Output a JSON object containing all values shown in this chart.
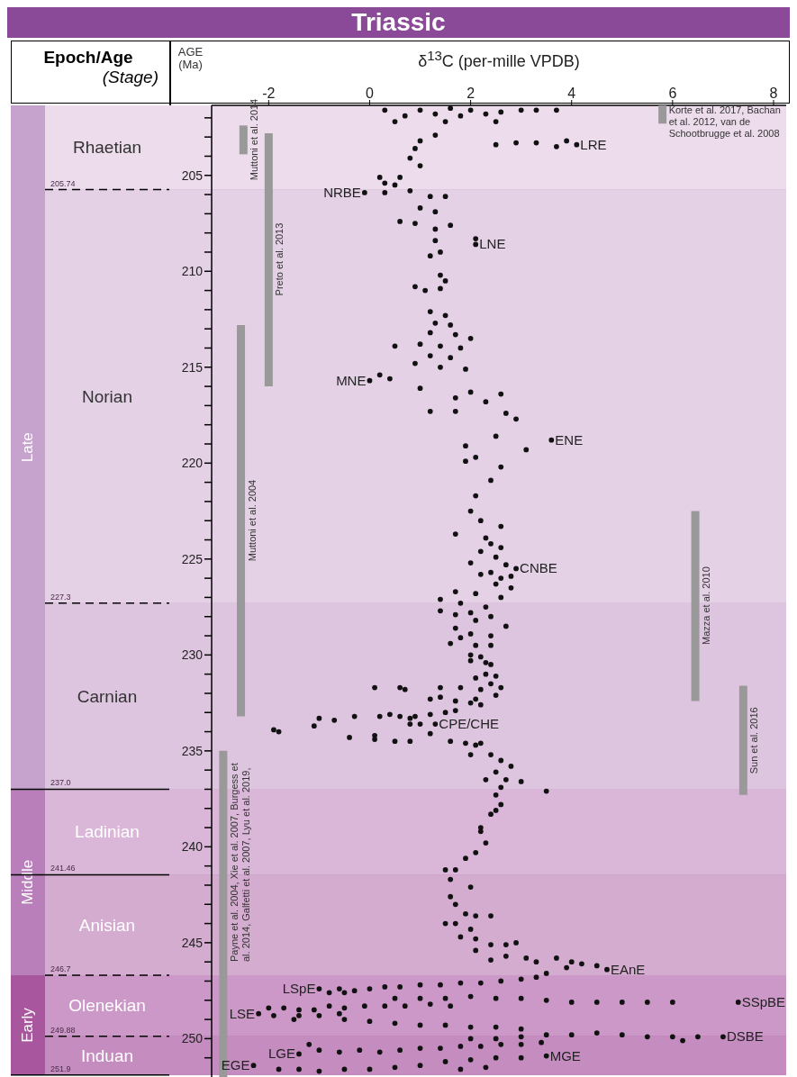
{
  "chart_data": {
    "type": "scatter",
    "title": "Triassic",
    "xlabel": "δ$^{13}$C (per-mille VPDB)",
    "ylabel": "AGE (Ma)",
    "annotations": [
      "Epoch/Age",
      "(Stage)",
      {
        "text": "LRE",
        "x": 4.1,
        "y": 203.4
      },
      {
        "text": "NRBE",
        "x": -0.1,
        "y": 205.9
      },
      {
        "text": "LNE",
        "x": 2.1,
        "y": 208.6
      },
      {
        "text": "MNE",
        "x": 0.0,
        "y": 215.7
      },
      {
        "text": "ENE",
        "x": 3.6,
        "y": 218.8
      },
      {
        "text": "CNBE",
        "x": 2.9,
        "y": 225.5
      },
      {
        "text": "CPE/CHE",
        "x": 1.3,
        "y": 233.6
      },
      {
        "text": "EAnE",
        "x": 4.7,
        "y": 246.4
      },
      {
        "text": "LSpE",
        "x": -1.0,
        "y": 247.4
      },
      {
        "text": "LSE",
        "x": -2.2,
        "y": 248.7
      },
      {
        "text": "SSpBE",
        "x": 7.3,
        "y": 248.1
      },
      {
        "text": "DSBE",
        "x": 7.0,
        "y": 249.9
      },
      {
        "text": "LGE",
        "x": -1.4,
        "y": 250.8
      },
      {
        "text": "EGE",
        "x": -2.3,
        "y": 251.4
      },
      {
        "text": "MGE",
        "x": 3.5,
        "y": 250.9
      }
    ],
    "xlim": [
      -3.13,
      8.25
    ],
    "xticks": [
      -2,
      0,
      2,
      4,
      6,
      8
    ],
    "ylim": [
      252,
      201.35
    ],
    "yticks": [
      {
        "value": 202,
        "label": null
      },
      {
        "value": 203,
        "label": null
      },
      {
        "value": 204,
        "label": null
      },
      205,
      {
        "value": 206,
        "label": null
      },
      {
        "value": 207,
        "label": null
      },
      {
        "value": 208,
        "label": null
      },
      {
        "value": 209,
        "label": null
      },
      210,
      {
        "value": 211,
        "label": null
      },
      {
        "value": 212,
        "label": null
      },
      {
        "value": 213,
        "label": null
      },
      {
        "value": 214,
        "label": null
      },
      215,
      {
        "value": 216,
        "label": null
      },
      {
        "value": 217,
        "label": null
      },
      {
        "value": 218,
        "label": null
      },
      {
        "value": 219,
        "label": null
      },
      220,
      {
        "value": 221,
        "label": null
      },
      {
        "value": 222,
        "label": null
      },
      {
        "value": 223,
        "label": null
      },
      {
        "value": 224,
        "label": null
      },
      225,
      {
        "value": 226,
        "label": null
      },
      {
        "value": 227,
        "label": null
      },
      {
        "value": 228,
        "label": null
      },
      {
        "value": 229,
        "label": null
      },
      230,
      {
        "value": 231,
        "label": null
      },
      {
        "value": 232,
        "label": null
      },
      {
        "value": 233,
        "label": null
      },
      {
        "value": 234,
        "label": null
      },
      235,
      {
        "value": 236,
        "label": null
      },
      {
        "value": 237,
        "label": null
      },
      {
        "value": 238,
        "label": null
      },
      {
        "value": 239,
        "label": null
      },
      240,
      {
        "value": 241,
        "label": null
      },
      {
        "value": 242,
        "label": null
      },
      {
        "value": 243,
        "label": null
      },
      {
        "value": 244,
        "label": null
      },
      245,
      {
        "value": 246,
        "label": null
      },
      {
        "value": 247,
        "label": null
      },
      {
        "value": 248,
        "label": null
      },
      {
        "value": 249,
        "label": null
      },
      250,
      {
        "value": 251,
        "label": null
      }
    ],
    "bands": [
      {
        "axis": "y",
        "from": 201.35,
        "to": 205.74,
        "label": "Rhaetian",
        "color": "#eddcec"
      },
      {
        "axis": "y",
        "from": 205.74,
        "to": 227.3,
        "label": "Norian",
        "color": "#e5d1e5"
      },
      {
        "axis": "y",
        "from": 227.3,
        "to": 237.0,
        "label": "Carnian",
        "color": "#dec5df"
      },
      {
        "axis": "y",
        "from": 237.0,
        "to": 241.46,
        "label": "Ladinian",
        "color": "#dab7d8"
      },
      {
        "axis": "y",
        "from": 241.46,
        "to": 246.7,
        "label": "Anisian",
        "color": "#d4acd0"
      },
      {
        "axis": "y",
        "from": 246.7,
        "to": 249.88,
        "label": "Olenekian",
        "color": "#cc98c8"
      },
      {
        "axis": "y",
        "from": 249.88,
        "to": 251.9,
        "label": "Induan",
        "color": "#c48cbf"
      },
      {
        "axis": "y",
        "from": 201.35,
        "to": 237.0,
        "label": "Late",
        "color": "#c6a3cc"
      },
      {
        "axis": "y",
        "from": 237.0,
        "to": 246.7,
        "label": "Middle",
        "color": "#b87fbb"
      },
      {
        "axis": "y",
        "from": 246.7,
        "to": 251.9,
        "label": "Early",
        "color": "#a8579f"
      }
    ],
    "ref_lines": [
      {
        "axis": "y",
        "value": 205.74,
        "label": "205.74",
        "line_style": "dashed"
      },
      {
        "axis": "y",
        "value": 227.3,
        "label": "227.3",
        "line_style": "dashed"
      },
      {
        "axis": "y",
        "value": 237.0,
        "label": "237.0",
        "line_style": "solid"
      },
      {
        "axis": "y",
        "value": 241.46,
        "label": "241.46",
        "line_style": "solid"
      },
      {
        "axis": "y",
        "value": 246.7,
        "label": "246.7",
        "line_style": "dashed"
      },
      {
        "axis": "y",
        "value": 249.88,
        "label": "249.88",
        "line_style": "dashed"
      },
      {
        "axis": "y",
        "value": 251.9,
        "label": "251.9",
        "line_style": "solid"
      }
    ],
    "series": [
      {
        "type": "scatter",
        "color": "#111111",
        "x": [
          0.3,
          0.7,
          1.0,
          1.3,
          1.6,
          1.8,
          2.0,
          2.3,
          2.6,
          3.0,
          3.3,
          3.7,
          0.5,
          1.5,
          2.5,
          2.5,
          2.9,
          3.3,
          3.7,
          3.9,
          4.1,
          1.0,
          1.3,
          0.9,
          0.8,
          1.0,
          0.6,
          0.2,
          0.3,
          0.5,
          -0.1,
          0.3,
          0.8,
          1.2,
          1.5,
          1.0,
          1.3,
          0.6,
          0.9,
          1.3,
          1.6,
          1.3,
          2.1,
          2.1,
          1.4,
          1.2,
          1.4,
          1.5,
          0.9,
          1.1,
          1.4,
          1.2,
          1.5,
          1.3,
          1.6,
          1.2,
          1.7,
          2.0,
          1.0,
          1.4,
          1.8,
          0.5,
          1.2,
          1.6,
          0.9,
          1.4,
          1.9,
          0.0,
          0.2,
          0.4,
          1.0,
          2.0,
          1.7,
          2.3,
          2.6,
          1.2,
          1.7,
          2.7,
          2.9,
          3.6,
          2.5,
          3.1,
          1.9,
          2.1,
          1.9,
          2.6,
          2.4,
          2.1,
          2.0,
          2.2,
          2.6,
          1.7,
          2.3,
          2.4,
          2.6,
          2.2,
          2.5,
          2.0,
          2.7,
          2.9,
          2.4,
          2.2,
          2.8,
          2.6,
          2.8,
          2.5,
          2.6,
          1.7,
          2.1,
          1.4,
          1.8,
          2.3,
          1.4,
          1.7,
          2.0,
          2.4,
          2.1,
          2.7,
          1.7,
          2.0,
          1.8,
          1.6,
          2.4,
          2.1,
          2.0,
          2.2,
          2.4,
          2.0,
          2.3,
          2.4,
          2.5,
          2.1,
          2.3,
          2.4,
          2.2,
          2.5,
          2.1,
          2.2,
          2.6,
          1.8,
          0.1,
          0.6,
          0.7,
          1.4,
          1.2,
          1.4,
          1.7,
          2.0,
          -1.9,
          -1.8,
          -1.1,
          -1.0,
          -0.7,
          -0.3,
          0.2,
          0.4,
          0.6,
          0.8,
          0.9,
          1.2,
          0.8,
          1.0,
          1.3,
          1.2,
          1.5,
          1.7,
          -0.4,
          0.1,
          0.1,
          0.5,
          0.8,
          1.6,
          1.9,
          2.2,
          2.1,
          2.0,
          2.4,
          2.6,
          2.8,
          2.5,
          2.3,
          2.7,
          3.0,
          3.5,
          2.6,
          2.5,
          2.6,
          2.4,
          2.5,
          2.2,
          2.2,
          2.3,
          2.1,
          1.9,
          1.7,
          1.5,
          1.6,
          2.0,
          1.6,
          1.7,
          1.9,
          1.5,
          1.7,
          2.1,
          2.4,
          2.0,
          1.8,
          2.1,
          2.1,
          2.4,
          2.7,
          2.9,
          2.4,
          2.7,
          3.1,
          3.3,
          3.7,
          4.0,
          4.2,
          4.5,
          4.7,
          3.9,
          3.5,
          -1.0,
          -0.6,
          -0.3,
          0.0,
          0.3,
          0.6,
          1.0,
          1.4,
          1.8,
          2.2,
          2.6,
          3.0,
          3.3,
          -0.8,
          -0.5,
          0.5,
          1.0,
          1.5,
          2.0,
          2.5,
          3.0,
          3.5,
          4.0,
          4.5,
          5.0,
          5.5,
          6.0,
          7.3,
          -2.2,
          -2.0,
          -1.7,
          -1.4,
          -1.1,
          -0.8,
          -0.5,
          -0.1,
          0.3,
          0.7,
          1.2,
          1.6,
          -1.9,
          -1.4,
          -1.0,
          -0.6,
          -0.5,
          0.0,
          0.5,
          1.0,
          1.5,
          2.0,
          2.5,
          3.0,
          -1.5,
          3.5,
          4.0,
          4.5,
          5.0,
          5.5,
          6.0,
          6.5,
          7.0,
          6.2,
          3.0,
          2.5,
          2.0,
          -1.4,
          -1.0,
          -0.6,
          -0.2,
          0.2,
          0.6,
          1.0,
          1.4,
          1.8,
          2.2,
          2.6,
          3.0,
          3.4,
          -1.2,
          -2.3,
          -1.8,
          -1.4,
          -1.0,
          -0.5,
          0.0,
          0.5,
          1.0,
          1.5,
          2.0,
          2.5,
          3.0,
          3.5,
          1.8,
          2.3
        ],
        "values": [
          201.6,
          201.9,
          201.6,
          201.8,
          201.5,
          201.9,
          201.6,
          201.8,
          201.7,
          201.6,
          201.6,
          201.6,
          202.2,
          202.2,
          202.2,
          203.4,
          203.3,
          203.3,
          203.5,
          203.2,
          203.4,
          203.2,
          202.9,
          203.6,
          204.1,
          204.5,
          205.1,
          205.1,
          205.4,
          205.5,
          205.9,
          205.9,
          205.8,
          206.1,
          206.1,
          206.7,
          206.9,
          207.4,
          207.5,
          207.8,
          207.6,
          208.4,
          208.3,
          208.6,
          209.0,
          209.2,
          210.2,
          210.5,
          210.8,
          211.0,
          210.9,
          212.1,
          212.3,
          212.7,
          212.8,
          213.2,
          213.3,
          213.5,
          213.8,
          213.9,
          214.0,
          213.9,
          214.4,
          214.5,
          214.8,
          215.0,
          215.1,
          215.7,
          215.4,
          215.6,
          216.1,
          216.3,
          216.6,
          216.8,
          216.4,
          217.3,
          217.3,
          217.4,
          217.7,
          218.8,
          218.6,
          219.3,
          219.1,
          219.7,
          219.9,
          220.2,
          220.9,
          221.7,
          222.5,
          223.0,
          223.3,
          223.7,
          223.9,
          224.2,
          224.4,
          224.6,
          224.9,
          225.2,
          225.3,
          225.5,
          225.7,
          225.8,
          225.9,
          226.0,
          226.5,
          226.3,
          227.0,
          226.7,
          226.8,
          227.1,
          227.3,
          227.5,
          227.7,
          227.9,
          227.8,
          228.0,
          228.2,
          228.5,
          228.6,
          228.9,
          229.1,
          229.4,
          229.0,
          229.5,
          230.0,
          230.1,
          229.5,
          230.3,
          230.4,
          230.5,
          231.1,
          231.2,
          231.0,
          231.5,
          231.8,
          232.1,
          232.3,
          232.6,
          231.7,
          231.7,
          231.7,
          231.7,
          231.8,
          231.7,
          232.3,
          232.2,
          232.4,
          232.5,
          233.9,
          234.0,
          233.7,
          233.3,
          233.4,
          233.2,
          233.2,
          233.1,
          233.2,
          233.3,
          233.2,
          233.1,
          233.6,
          233.6,
          233.6,
          234.1,
          233.0,
          232.9,
          234.3,
          234.2,
          234.4,
          234.5,
          234.5,
          234.5,
          234.6,
          234.6,
          234.7,
          235.2,
          235.2,
          235.5,
          235.8,
          236.1,
          236.5,
          236.5,
          236.6,
          237.1,
          236.9,
          237.3,
          237.8,
          238.3,
          238.1,
          239.0,
          239.2,
          239.8,
          240.3,
          240.6,
          241.2,
          241.2,
          241.7,
          242.1,
          242.6,
          243.0,
          243.5,
          244.0,
          244.0,
          243.6,
          243.6,
          244.3,
          244.7,
          244.8,
          245.4,
          245.1,
          245.1,
          245.0,
          245.9,
          245.7,
          245.8,
          246.0,
          245.8,
          246.0,
          246.1,
          246.2,
          246.4,
          246.3,
          246.6,
          247.4,
          247.4,
          247.5,
          247.4,
          247.3,
          247.3,
          247.2,
          247.2,
          247.1,
          247.1,
          247.0,
          246.9,
          246.8,
          247.6,
          247.6,
          247.9,
          247.9,
          247.9,
          247.8,
          247.9,
          247.9,
          248.0,
          248.1,
          248.1,
          248.1,
          248.1,
          248.1,
          248.1,
          248.7,
          248.4,
          248.4,
          248.5,
          248.5,
          248.3,
          248.4,
          248.3,
          248.3,
          248.3,
          248.2,
          248.3,
          248.8,
          248.8,
          248.8,
          248.7,
          249.0,
          249.1,
          249.2,
          249.3,
          249.3,
          249.4,
          249.4,
          249.5,
          249.0,
          249.8,
          249.8,
          249.7,
          249.8,
          249.9,
          249.9,
          249.9,
          249.9,
          250.1,
          249.9,
          250.0,
          250.0,
          250.8,
          250.6,
          250.7,
          250.6,
          250.7,
          250.6,
          250.5,
          250.5,
          250.4,
          250.4,
          250.3,
          250.3,
          250.2,
          250.3,
          251.4,
          251.6,
          251.6,
          251.7,
          251.6,
          251.6,
          251.5,
          251.4,
          251.2,
          251.1,
          251.0,
          251.0,
          250.9,
          251.6,
          251.5
        ]
      },
      {
        "type": "line",
        "name": "Korte et al. 2017, Bachan et al. 2012, van de Schootbrugge et al. 2008",
        "color": "#999999",
        "x": [
          5.8,
          5.8
        ],
        "values": [
          201.35,
          202.3
        ]
      },
      {
        "type": "line",
        "name": "Muttoni et al. 2014",
        "color": "#999999",
        "x": [
          -2.5,
          -2.5
        ],
        "values": [
          202.4,
          203.9
        ]
      },
      {
        "type": "line",
        "name": "Preto et al. 2013",
        "color": "#999999",
        "x": [
          -2.0,
          -2.0
        ],
        "values": [
          202.8,
          216.0
        ]
      },
      {
        "type": "line",
        "name": "Muttoni et al. 2004",
        "color": "#999999",
        "x": [
          -2.55,
          -2.55
        ],
        "values": [
          212.8,
          233.2
        ]
      },
      {
        "type": "line",
        "name": "Mazza et al. 2010",
        "color": "#999999",
        "x": [
          6.45,
          6.45
        ],
        "values": [
          222.5,
          232.4
        ]
      },
      {
        "type": "line",
        "name": "Sun et al. 2016",
        "color": "#999999",
        "x": [
          7.4,
          7.4
        ],
        "values": [
          231.6,
          237.3
        ]
      },
      {
        "type": "line",
        "name": "Payne et al. 2004, Xie et al. 2007, Burgess et al. 2014, Galfetti et al. 2007, Lyu et al. 2019,",
        "color": "#999999",
        "x": [
          -2.9,
          -2.9
        ],
        "values": [
          235.0,
          252
        ]
      }
    ]
  }
}
